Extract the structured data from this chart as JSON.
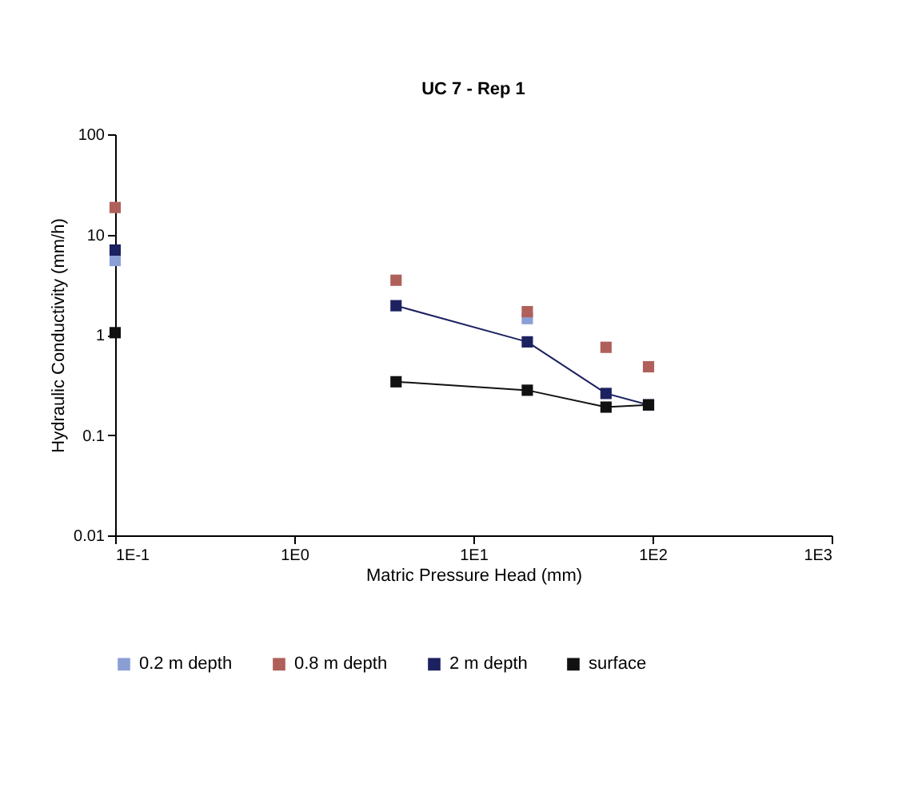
{
  "chart_data": {
    "type": "scatter",
    "title": "UC 7 - Rep 1",
    "xlabel": "Matric Pressure Head (mm)",
    "ylabel": "Hydraulic Conductivity (mm/h)",
    "x": [
      0.1,
      3.7,
      20,
      55,
      95
    ],
    "series": [
      {
        "name": "0.2 m depth",
        "color": "#8b9fd6",
        "values": [
          5.5,
          null,
          1.45,
          null,
          null
        ]
      },
      {
        "name": "0.8 m depth",
        "color": "#b0605a",
        "values": [
          18.6,
          3.5,
          1.7,
          0.75,
          0.48
        ]
      },
      {
        "name": "2 m depth",
        "type": "line",
        "color": "#1c2160",
        "x": [
          3.7,
          20,
          55,
          95
        ],
        "values": [
          1.95,
          0.85,
          0.26,
          0.2
        ]
      },
      {
        "name": "surface",
        "type": "line",
        "color": "#111111",
        "x": [
          3.7,
          20,
          55,
          95
        ],
        "values": [
          0.34,
          0.28,
          0.19,
          0.2
        ]
      },
      {
        "color": "#1c2160",
        "x": [
          0.1
        ],
        "values": [
          7
        ]
      },
      {
        "color": "#111111",
        "x": [
          0.1
        ],
        "values": [
          1.05
        ]
      }
    ],
    "log": "xy",
    "marker": "square",
    "legend": "bottom",
    "xlim": [
      0.1,
      1000
    ],
    "xticks": [
      {
        "value": 0.1,
        "label": "1E-1"
      },
      {
        "value": 1,
        "label": "1E0"
      },
      {
        "value": 10,
        "label": "1E1"
      },
      {
        "value": 100,
        "label": "1E2"
      },
      {
        "value": 1000,
        "label": "1E3"
      }
    ],
    "ylim": [
      0.01,
      100
    ],
    "yticks": [
      0.01,
      0.1,
      1,
      10,
      100
    ]
  }
}
